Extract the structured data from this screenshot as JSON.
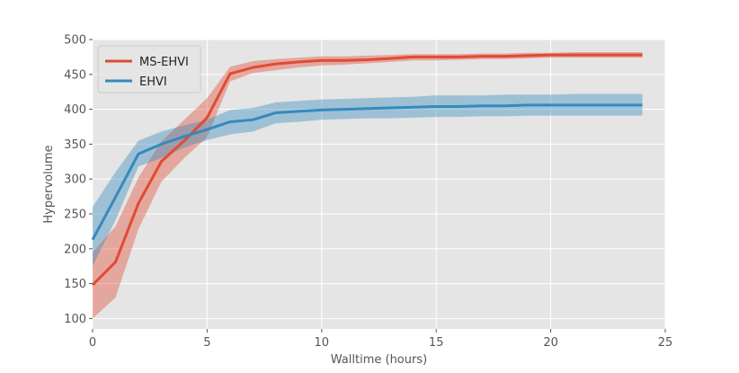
{
  "chart_data": {
    "type": "line",
    "title": "",
    "xlabel": "Walltime (hours)",
    "ylabel": "Hypervolume",
    "xlim": [
      0,
      25
    ],
    "ylim": [
      85,
      500
    ],
    "xticks": [
      0,
      5,
      10,
      15,
      20,
      25
    ],
    "yticks": [
      100,
      150,
      200,
      250,
      300,
      350,
      400,
      450,
      500
    ],
    "grid": true,
    "background": "#E5E5E5",
    "legend_position": "top-left",
    "series": [
      {
        "name": "MS-EHVI",
        "color": "#E24A33",
        "x": [
          0,
          1,
          2,
          3,
          4,
          5,
          6,
          7,
          8,
          9,
          10,
          11,
          12,
          13,
          14,
          15,
          16,
          17,
          18,
          19,
          20,
          21,
          22,
          23,
          24
        ],
        "y": [
          148,
          181,
          265,
          325,
          355,
          388,
          451,
          460,
          465,
          468,
          470,
          470,
          471,
          473,
          475,
          475,
          475,
          476,
          476,
          477,
          478,
          478,
          478,
          478,
          478
        ],
        "lower": [
          100,
          130,
          228,
          296,
          330,
          360,
          440,
          452,
          456,
          460,
          463,
          464,
          466,
          468,
          470,
          470,
          471,
          472,
          472,
          473,
          474,
          474,
          474,
          474,
          474
        ],
        "upper": [
          195,
          232,
          302,
          354,
          385,
          416,
          461,
          469,
          472,
          474,
          476,
          476,
          477,
          478,
          479,
          479,
          479,
          480,
          480,
          481,
          481,
          482,
          482,
          482,
          482
        ]
      },
      {
        "name": "EHVI",
        "color": "#348ABD",
        "x": [
          0,
          1,
          2,
          3,
          4,
          5,
          6,
          7,
          8,
          9,
          10,
          11,
          12,
          13,
          14,
          15,
          16,
          17,
          18,
          19,
          20,
          21,
          22,
          23,
          24
        ],
        "y": [
          213,
          274,
          336,
          350,
          361,
          371,
          382,
          385,
          395,
          397,
          399,
          400,
          401,
          402,
          403,
          404,
          404,
          405,
          405,
          406,
          406,
          406,
          406,
          406,
          406
        ],
        "lower": [
          175,
          241,
          318,
          330,
          345,
          356,
          364,
          368,
          380,
          382,
          385,
          386,
          387,
          387,
          388,
          389,
          389,
          390,
          390,
          391,
          391,
          391,
          391,
          391,
          391
        ],
        "upper": [
          260,
          310,
          355,
          368,
          377,
          385,
          399,
          402,
          410,
          412,
          414,
          415,
          416,
          417,
          418,
          420,
          420,
          420,
          421,
          421,
          421,
          422,
          422,
          422,
          422
        ]
      }
    ]
  }
}
